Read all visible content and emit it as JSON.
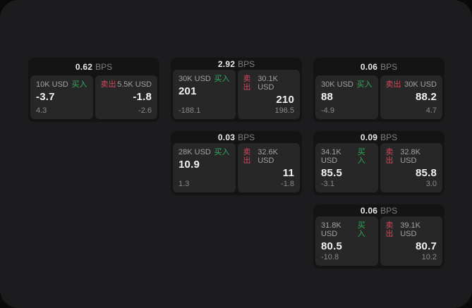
{
  "units": {
    "bps": "BPS"
  },
  "labels": {
    "buy": "买入",
    "sell": "卖出"
  },
  "colors": {
    "surface": "#1c1c1e",
    "card": "#141414",
    "panel": "#272727",
    "buy_green": "#31ab5f",
    "sell_red": "#cf4a5c"
  },
  "cards": [
    {
      "spread_bps": "0.62",
      "buy": {
        "amount": "10K USD",
        "price": "-3.7",
        "delta": "4.3"
      },
      "sell": {
        "amount": "5.5K USD",
        "price": "-1.8",
        "delta": "-2.6"
      }
    },
    {
      "spread_bps": "2.92",
      "buy": {
        "amount": "30K USD",
        "price": "201",
        "delta": "-188.1"
      },
      "sell": {
        "amount": "30.1K USD",
        "price": "210",
        "delta": "196.5"
      }
    },
    {
      "spread_bps": "0.06",
      "buy": {
        "amount": "30K USD",
        "price": "88",
        "delta": "-4.9"
      },
      "sell": {
        "amount": "30K USD",
        "price": "88.2",
        "delta": "4.7"
      }
    },
    {
      "spread_bps": "0.03",
      "buy": {
        "amount": "28K USD",
        "price": "10.9",
        "delta": "1.3"
      },
      "sell": {
        "amount": "32.6K USD",
        "price": "11",
        "delta": "-1.8"
      }
    },
    {
      "spread_bps": "0.09",
      "buy": {
        "amount": "34.1K USD",
        "price": "85.5",
        "delta": "-3.1"
      },
      "sell": {
        "amount": "32.8K USD",
        "price": "85.8",
        "delta": "3.0"
      }
    },
    {
      "spread_bps": "0.06",
      "buy": {
        "amount": "31.8K USD",
        "price": "80.5",
        "delta": "-10.8"
      },
      "sell": {
        "amount": "39.1K USD",
        "price": "80.7",
        "delta": "10.2"
      }
    }
  ]
}
